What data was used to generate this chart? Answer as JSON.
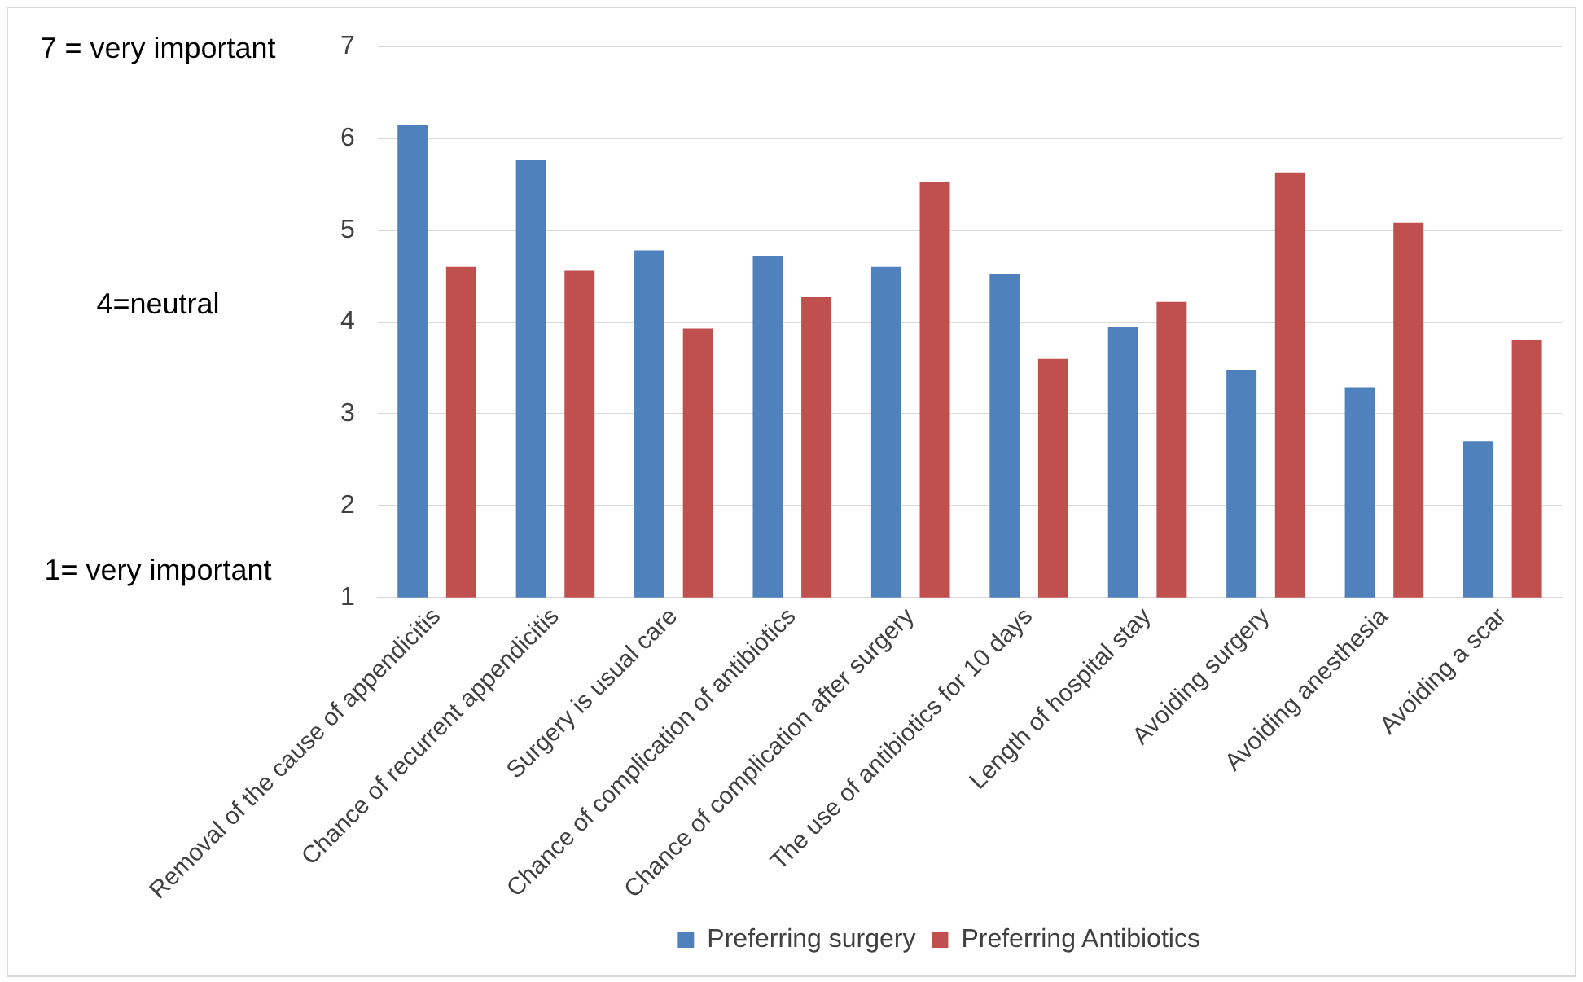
{
  "chart_data": {
    "type": "bar",
    "categories": [
      "Removal of the cause of appendicitis",
      "Chance of recurrent appendicitis",
      "Surgery is usual care",
      "Chance of complication of antibiotics",
      "Chance of complication after surgery",
      "The use of antibiotics for 10 days",
      "Length of hospital stay",
      "Avoiding surgery",
      "Avoiding anesthesia",
      "Avoiding a scar"
    ],
    "series": [
      {
        "name": "Preferring surgery",
        "color": "#4f81bd",
        "values": [
          6.15,
          5.77,
          4.78,
          4.72,
          4.6,
          4.52,
          3.95,
          3.48,
          3.29,
          2.7
        ]
      },
      {
        "name": "Preferring Antibiotics",
        "color": "#c0504d",
        "values": [
          4.6,
          4.56,
          3.93,
          4.27,
          5.52,
          3.6,
          4.22,
          5.63,
          5.08,
          3.8
        ]
      }
    ],
    "ylim": [
      1,
      7
    ],
    "yticks": [
      1,
      2,
      3,
      4,
      5,
      6,
      7
    ],
    "grid": "y",
    "legend": "bottom",
    "annotations": [
      "7 = very important",
      "4=neutral",
      "1= very important"
    ]
  }
}
